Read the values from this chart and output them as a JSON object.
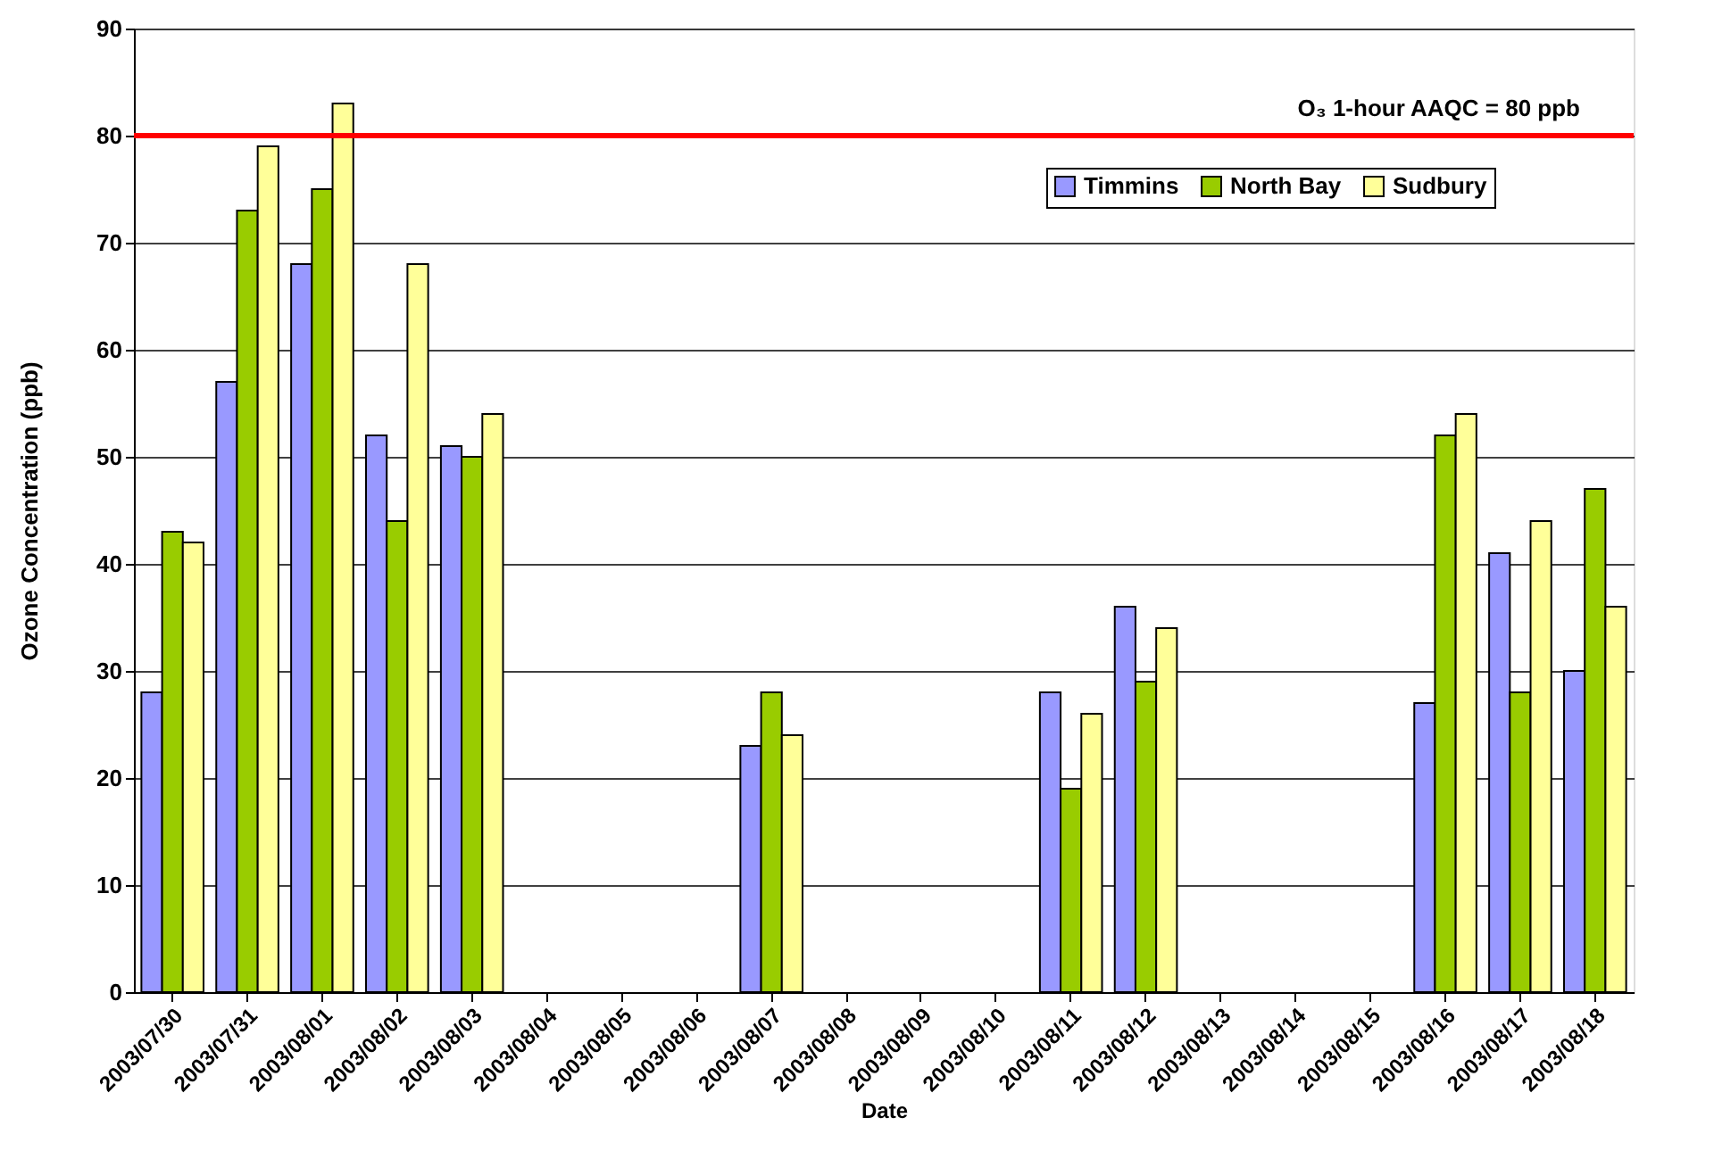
{
  "chart_data": {
    "type": "bar",
    "xlabel": "Date",
    "ylabel": "Ozone Concentration (ppb)",
    "categories": [
      "2003/07/30",
      "2003/07/31",
      "2003/08/01",
      "2003/08/02",
      "2003/08/03",
      "2003/08/04",
      "2003/08/05",
      "2003/08/06",
      "2003/08/07",
      "2003/08/08",
      "2003/08/09",
      "2003/08/10",
      "2003/08/11",
      "2003/08/12",
      "2003/08/13",
      "2003/08/14",
      "2003/08/15",
      "2003/08/16",
      "2003/08/17",
      "2003/08/18"
    ],
    "series": [
      {
        "name": "Timmins",
        "color": "#9999ff",
        "values": [
          28,
          57,
          68,
          52,
          51,
          null,
          null,
          null,
          23,
          null,
          null,
          null,
          28,
          36,
          null,
          null,
          null,
          27,
          41,
          30
        ]
      },
      {
        "name": "North Bay",
        "color": "#99cc00",
        "values": [
          43,
          73,
          75,
          44,
          50,
          null,
          null,
          null,
          28,
          null,
          null,
          null,
          19,
          29,
          null,
          null,
          null,
          52,
          28,
          47
        ]
      },
      {
        "name": "Sudbury",
        "color": "#ffff99",
        "values": [
          42,
          79,
          83,
          68,
          54,
          null,
          null,
          null,
          24,
          null,
          null,
          null,
          26,
          34,
          null,
          null,
          null,
          54,
          44,
          36
        ]
      }
    ],
    "ylim": [
      0,
      90
    ],
    "yticks": [
      0,
      10,
      20,
      30,
      40,
      50,
      60,
      70,
      80,
      90
    ],
    "ref_lines": [
      {
        "axis": "y",
        "value": 80,
        "label": "O₃ 1-hour AAQC = 80 ppb",
        "color": "#ff0000"
      }
    ],
    "grid": "y",
    "legend": "top right"
  }
}
